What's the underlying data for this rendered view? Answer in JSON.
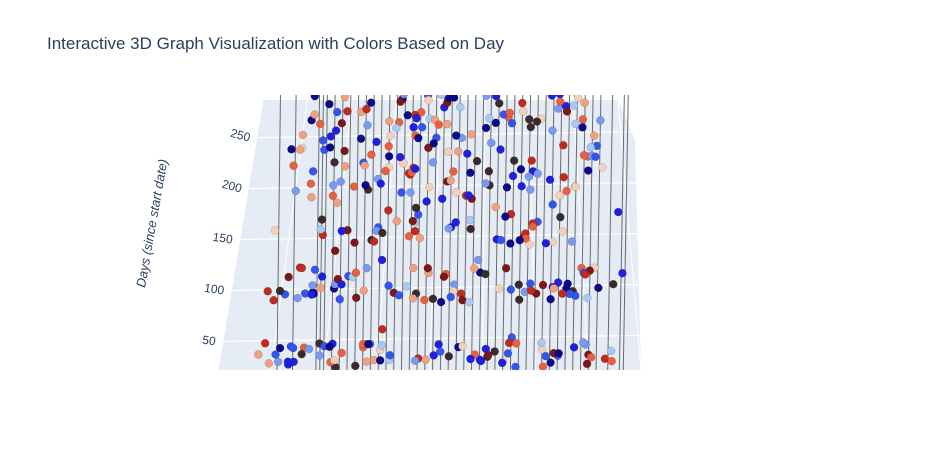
{
  "chart_data": {
    "type": "scatter",
    "title": "Interactive 3D Graph Visualization with Colors Based on Day",
    "zlabel": "Days (since start date)",
    "z_ticks": [
      "50",
      "100",
      "150",
      "200",
      "250"
    ],
    "zlim": [
      20,
      285
    ],
    "grid": true,
    "colorscale": [
      "#0d0887",
      "#1f1fe0",
      "#3355ee",
      "#7799f0",
      "#aac8f5",
      "#f5d0b8",
      "#f0a080",
      "#e86040",
      "#c02a20",
      "#7a1818",
      "#3a2a2a"
    ],
    "series": [
      {
        "name": "",
        "points": [
          {
            "x": 0.1,
            "z": 28,
            "c": 0.3
          },
          {
            "x": 0.14,
            "z": 28,
            "c": 0.05
          },
          {
            "x": 0.2,
            "z": 235,
            "c": 0.9
          },
          {
            "x": 0.21,
            "z": 137,
            "c": 0.92
          },
          {
            "x": 0.22,
            "z": 100,
            "c": 0.0
          },
          {
            "x": 0.24,
            "z": 200,
            "c": 0.7
          },
          {
            "x": 0.26,
            "z": 145,
            "c": 0.85
          },
          {
            "x": 0.28,
            "z": 197,
            "c": 0.95
          },
          {
            "x": 0.3,
            "z": 98,
            "c": 0.6
          },
          {
            "x": 0.32,
            "z": 160,
            "c": 0.2
          },
          {
            "x": 0.34,
            "z": 128,
            "c": 0.05
          },
          {
            "x": 0.36,
            "z": 60,
            "c": 0.8
          },
          {
            "x": 0.38,
            "z": 270,
            "c": 0.0
          },
          {
            "x": 0.4,
            "z": 250,
            "c": 0.65
          },
          {
            "x": 0.42,
            "z": 165,
            "c": 0.4
          },
          {
            "x": 0.44,
            "z": 95,
            "c": 0.95
          },
          {
            "x": 0.46,
            "z": 248,
            "c": 0.15
          },
          {
            "x": 0.48,
            "z": 30,
            "c": 0.55
          },
          {
            "x": 0.5,
            "z": 205,
            "c": 0.88
          },
          {
            "x": 0.52,
            "z": 160,
            "c": 0.1
          },
          {
            "x": 0.54,
            "z": 278,
            "c": 0.35
          },
          {
            "x": 0.56,
            "z": 95,
            "c": 0.75
          },
          {
            "x": 0.58,
            "z": 225,
            "c": 0.98
          },
          {
            "x": 0.6,
            "z": 128,
            "c": 0.25
          },
          {
            "x": 0.62,
            "z": 30,
            "c": 0.05
          },
          {
            "x": 0.64,
            "z": 180,
            "c": 0.6
          },
          {
            "x": 0.66,
            "z": 100,
            "c": 0.45
          },
          {
            "x": 0.68,
            "z": 268,
            "c": 0.7
          },
          {
            "x": 0.7,
            "z": 52,
            "c": 0.2
          },
          {
            "x": 0.72,
            "z": 150,
            "c": 0.9
          },
          {
            "x": 0.74,
            "z": 215,
            "c": 0.1
          },
          {
            "x": 0.76,
            "z": 95,
            "c": 0.85
          },
          {
            "x": 0.78,
            "z": 40,
            "c": 0.5
          },
          {
            "x": 0.8,
            "z": 255,
            "c": 0.3
          },
          {
            "x": 0.82,
            "z": 170,
            "c": 0.95
          },
          {
            "x": 0.84,
            "z": 100,
            "c": 0.0
          },
          {
            "x": 0.86,
            "z": 200,
            "c": 0.25
          },
          {
            "x": 0.88,
            "z": 120,
            "c": 0.68
          },
          {
            "x": 0.9,
            "z": 35,
            "c": 0.92
          },
          {
            "x": 0.92,
            "z": 240,
            "c": 0.15
          },
          {
            "x": 0.95,
            "z": 265,
            "c": 0.3
          },
          {
            "x": 0.98,
            "z": 175,
            "c": 0.05
          },
          {
            "x": 0.99,
            "z": 115,
            "c": 0.1
          }
        ]
      }
    ]
  }
}
